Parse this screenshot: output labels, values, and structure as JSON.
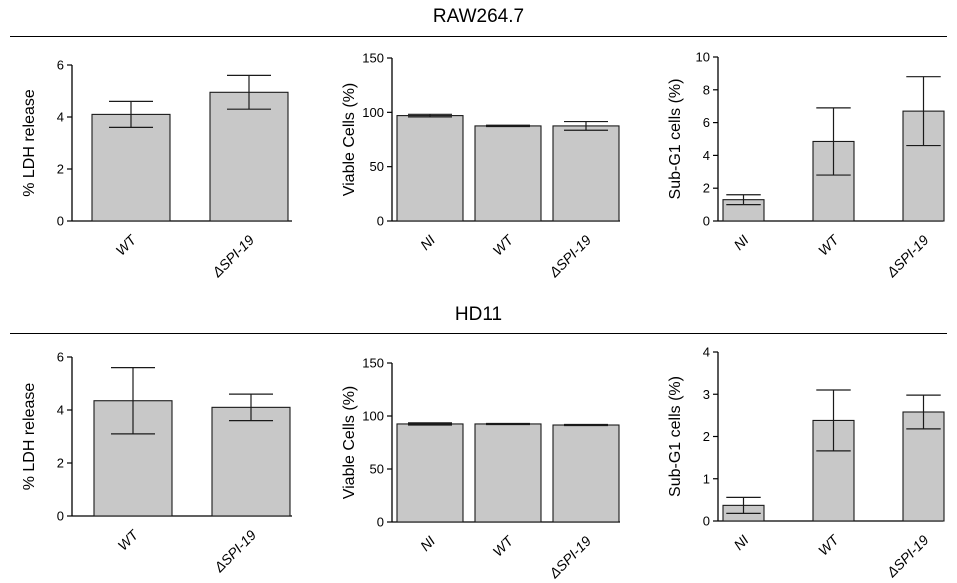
{
  "sections": [
    {
      "title": "RAW264.7"
    },
    {
      "title": "HD11"
    }
  ],
  "chart_data": [
    {
      "type": "bar",
      "group": "RAW264.7",
      "ylabel": "% LDH release",
      "categories": [
        "WT",
        "ΔSPI-19"
      ],
      "values": [
        4.1,
        4.95
      ],
      "errors": [
        0.5,
        0.65
      ],
      "ylim": [
        0,
        6
      ],
      "yticks": [
        0,
        2,
        4,
        6
      ],
      "grid": false
    },
    {
      "type": "bar",
      "group": "RAW264.7",
      "ylabel": "Viable Cells (%)",
      "categories": [
        "NI",
        "WT",
        "ΔSPI-19"
      ],
      "values": [
        97,
        87.5,
        87.5
      ],
      "errors": [
        1.2,
        0.6,
        4
      ],
      "ylim": [
        0,
        150
      ],
      "yticks": [
        0,
        50,
        100,
        150
      ],
      "grid": false
    },
    {
      "type": "bar",
      "group": "RAW264.7",
      "ylabel": "Sub-G1 cells (%)",
      "categories": [
        "NI",
        "WT",
        "ΔSPI-19"
      ],
      "values": [
        1.3,
        4.85,
        6.7
      ],
      "errors": [
        0.3,
        2.05,
        2.1
      ],
      "ylim": [
        0,
        10
      ],
      "yticks": [
        0,
        2,
        4,
        6,
        8,
        10
      ],
      "grid": false
    },
    {
      "type": "bar",
      "group": "HD11",
      "ylabel": "% LDH release",
      "categories": [
        "WT",
        "ΔSPI-19"
      ],
      "values": [
        4.35,
        4.1
      ],
      "errors": [
        1.25,
        0.5
      ],
      "ylim": [
        0,
        6
      ],
      "yticks": [
        0,
        2,
        4,
        6
      ],
      "grid": false
    },
    {
      "type": "bar",
      "group": "HD11",
      "ylabel": "Viable Cells (%)",
      "categories": [
        "NI",
        "WT",
        "ΔSPI-19"
      ],
      "values": [
        92.5,
        92.5,
        91.5
      ],
      "errors": [
        1,
        0.5,
        0.5
      ],
      "ylim": [
        0,
        150
      ],
      "yticks": [
        0,
        50,
        100,
        150
      ],
      "grid": false
    },
    {
      "type": "bar",
      "group": "HD11",
      "ylabel": "Sub-G1 cells (%)",
      "categories": [
        "NI",
        "WT",
        "ΔSPI-19"
      ],
      "values": [
        0.37,
        2.38,
        2.58
      ],
      "errors": [
        0.19,
        0.72,
        0.4
      ],
      "ylim": [
        0,
        4
      ],
      "yticks": [
        0,
        1,
        2,
        3,
        4
      ],
      "grid": false
    }
  ],
  "colors": {
    "bar_fill": "#c8c8c8",
    "bar_stroke": "#1a1a1a",
    "axis": "#000000"
  }
}
